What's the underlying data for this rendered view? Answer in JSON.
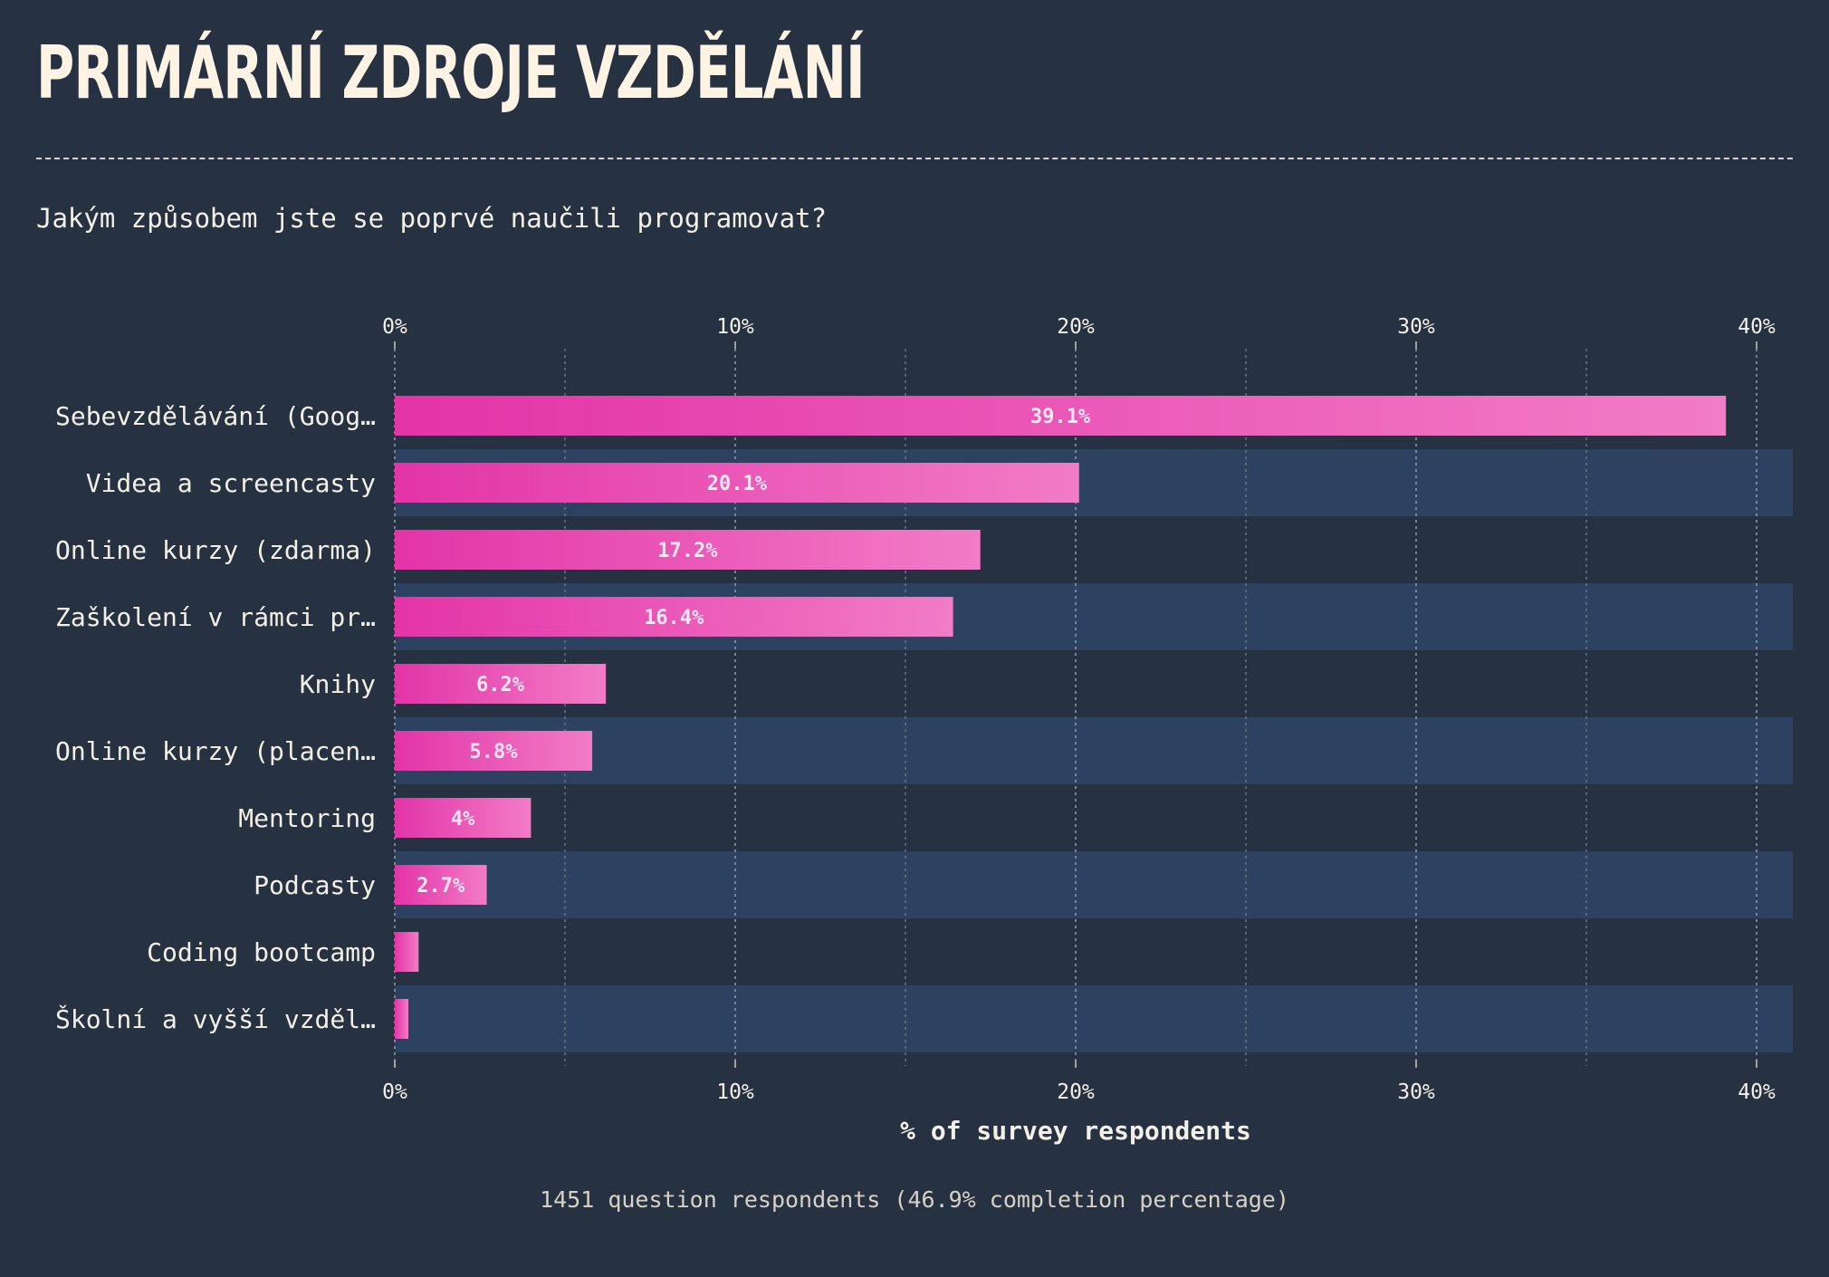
{
  "header": {
    "title": "PRIMÁRNÍ ZDROJE VZDĚLÁNÍ",
    "subtitle": "Jakým způsobem jste se poprvé naučili programovat?"
  },
  "footer": {
    "note": "1451 question respondents (46.9% completion percentage)"
  },
  "chart_data": {
    "type": "bar",
    "orientation": "horizontal",
    "categories": [
      "Sebevzdělávání (Goog…",
      "Videa a screencasty",
      "Online kurzy (zdarma)",
      "Zaškolení v rámci pr…",
      "Knihy",
      "Online kurzy (placen…",
      "Mentoring",
      "Podcasty",
      "Coding bootcamp",
      "Školní a vyšší vzděl…"
    ],
    "values": [
      39.1,
      20.1,
      17.2,
      16.4,
      6.2,
      5.8,
      4,
      2.7,
      0.7,
      0.4
    ],
    "data_labels": [
      "39.1%",
      "20.1%",
      "17.2%",
      "16.4%",
      "6.2%",
      "5.8%",
      "4%",
      "2.7%",
      "",
      ""
    ],
    "x_ticks": [
      0,
      10,
      20,
      30,
      40
    ],
    "x_tick_labels": [
      "0%",
      "10%",
      "20%",
      "30%",
      "40%"
    ],
    "xlabel": "% of survey respondents",
    "xlim": [
      0,
      41
    ],
    "grid": true,
    "colors": {
      "bar_start": "#e334a8",
      "bar_end": "#f27cc6",
      "band": "#2d4160",
      "background": "#263242",
      "text": "#f3f0e6"
    }
  }
}
